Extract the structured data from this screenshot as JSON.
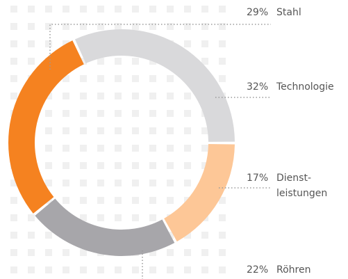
{
  "chart_data": {
    "type": "donut",
    "categories": [
      [
        "Technologie"
      ],
      [
        "Dienst-",
        "leistungen"
      ],
      [
        "Röhren"
      ],
      [
        "Stahl"
      ]
    ],
    "values": [
      32,
      17,
      22,
      29
    ],
    "value_labels": [
      "32%",
      "17%",
      "22%",
      "29%"
    ],
    "colors": [
      "#d9d9db",
      "#fdc797",
      "#a7a6aa",
      "#f58220"
    ]
  }
}
